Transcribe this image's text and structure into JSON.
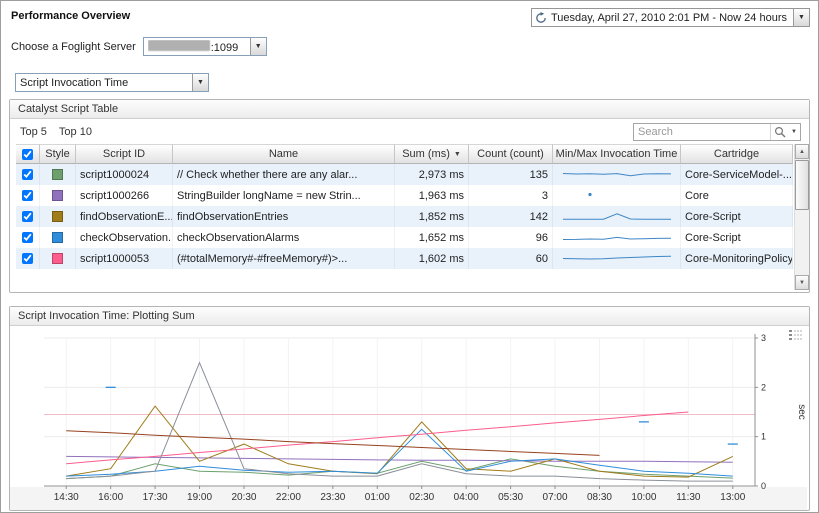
{
  "page": {
    "title": "Performance Overview"
  },
  "time_selector": {
    "label": "Tuesday, April 27, 2010 2:01 PM - Now 24 hours"
  },
  "server_selector": {
    "label": "Choose a Foglight Server",
    "value_suffix": ":1099"
  },
  "metric_selector": {
    "value": "Script Invocation Time"
  },
  "table_panel": {
    "title": "Catalyst Script Table",
    "top5_label": "Top 5",
    "top10_label": "Top 10",
    "search_placeholder": "Search",
    "sort_indicator": "▼",
    "columns": {
      "style": "Style",
      "script_id": "Script ID",
      "name": "Name",
      "sum": "Sum (ms)",
      "count": "Count (count)",
      "minmax": "Min/Max Invocation Time",
      "cartridge": "Cartridge"
    },
    "rows": [
      {
        "checked": true,
        "style_color": "#6da06d",
        "script_id": "script1000024",
        "name": "// Check whether there are any alar...",
        "sum": "2,973 ms",
        "count": "135",
        "cartridge": "Core-ServiceModel-...",
        "sparkline": [
          0.55,
          0.5,
          0.52,
          0.48,
          0.54,
          0.33,
          0.5,
          0.52,
          0.51
        ]
      },
      {
        "checked": true,
        "style_color": "#9071bd",
        "script_id": "script1000266",
        "name": "StringBuilder longName = new Strin...",
        "sum": "1,963 ms",
        "count": "3",
        "cartridge": "Core",
        "sparkline": [
          null,
          null,
          0.55,
          null,
          null,
          null,
          null,
          null,
          null
        ]
      },
      {
        "checked": true,
        "style_color": "#a07c1a",
        "script_id": "findObservationE...",
        "name": "findObservationEntries",
        "sum": "1,852 ms",
        "count": "142",
        "cartridge": "Core-Script",
        "sparkline": [
          0.18,
          0.18,
          0.18,
          0.18,
          0.72,
          0.2,
          0.18,
          0.18,
          0.18
        ]
      },
      {
        "checked": true,
        "style_color": "#2f8ddb",
        "script_id": "checkObservation...",
        "name": "checkObservationAlarms",
        "sum": "1,652 ms",
        "count": "96",
        "cartridge": "Core-Script",
        "sparkline": [
          0.25,
          0.26,
          0.3,
          0.28,
          0.46,
          0.3,
          0.33,
          0.36,
          0.38
        ]
      },
      {
        "checked": true,
        "style_color": "#fc5d8d",
        "script_id": "script1000053",
        "name": "(#totalMemory#-#freeMemory#)>...",
        "sum": "1,602 ms",
        "count": "60",
        "cartridge": "Core-MonitoringPolicy",
        "sparkline": [
          0.45,
          0.42,
          0.4,
          0.43,
          0.5,
          0.55,
          0.6,
          0.65,
          0.68
        ]
      }
    ]
  },
  "chart_panel": {
    "title": "Script Invocation Time: Plotting Sum"
  },
  "chart_data": {
    "type": "line",
    "title": "Script Invocation Time: Plotting Sum",
    "xlabel": "",
    "ylabel": "sec",
    "ylim": [
      0,
      3
    ],
    "yticks": [
      0,
      1,
      2,
      3
    ],
    "grid": true,
    "legend": "hidden",
    "threshold": {
      "value": 1.45,
      "color": "#f2bcc6"
    },
    "categories": [
      "14:30",
      "16:00",
      "17:30",
      "19:00",
      "20:30",
      "22:00",
      "23:30",
      "01:00",
      "02:30",
      "04:00",
      "05:30",
      "07:00",
      "08:30",
      "10:00",
      "11:30",
      "13:00"
    ],
    "series": [
      {
        "name": "script1000024",
        "color": "#6da06d",
        "values": [
          0.15,
          0.2,
          0.45,
          0.3,
          0.28,
          0.22,
          0.3,
          0.26,
          0.5,
          0.32,
          0.55,
          0.4,
          0.3,
          0.24,
          0.2,
          0.16
        ]
      },
      {
        "name": "script1000266",
        "color": "#9071bd",
        "values": [
          0.6,
          0.59,
          0.58,
          0.57,
          0.56,
          0.55,
          0.54,
          0.53,
          0.52,
          0.52,
          0.51,
          0.5,
          0.5,
          0.5,
          0.49,
          0.48
        ]
      },
      {
        "name": "findObservationEntries",
        "color": "#a07c1a",
        "values": [
          0.2,
          0.35,
          1.62,
          0.5,
          0.85,
          0.45,
          0.3,
          0.25,
          1.3,
          0.35,
          0.3,
          0.55,
          0.3,
          0.2,
          0.18,
          0.6
        ]
      },
      {
        "name": "checkObservationAlarms",
        "color": "#2f8ddb",
        "values": [
          0.2,
          0.24,
          0.3,
          0.4,
          0.32,
          0.28,
          0.3,
          0.26,
          1.15,
          0.3,
          0.5,
          0.55,
          0.42,
          0.3,
          0.26,
          0.2
        ]
      },
      {
        "name": "script1000053",
        "color": "#fc5d8d",
        "values": [
          0.45,
          0.53,
          0.6,
          0.68,
          0.75,
          0.83,
          0.9,
          0.98,
          1.05,
          1.13,
          1.2,
          1.28,
          1.35,
          1.43,
          1.5,
          null
        ]
      },
      {
        "name": "unlisted-gray",
        "color": "#8a8f98",
        "values": [
          0.15,
          0.2,
          0.3,
          2.5,
          0.35,
          0.25,
          0.2,
          0.2,
          0.45,
          0.25,
          0.2,
          0.2,
          0.15,
          0.12,
          0.1,
          0.1
        ]
      },
      {
        "name": "unlisted-maroon",
        "color": "#97421f",
        "values": [
          1.12,
          1.08,
          1.03,
          0.99,
          0.95,
          0.9,
          0.86,
          0.82,
          0.78,
          0.74,
          0.7,
          0.66,
          0.62,
          null,
          null,
          null
        ]
      },
      {
        "name": "unlisted-blue-marks",
        "color": "#2f8ddb",
        "values": [
          null,
          2.0,
          null,
          null,
          null,
          null,
          null,
          null,
          null,
          null,
          null,
          null,
          null,
          1.3,
          null,
          0.85
        ]
      }
    ]
  }
}
